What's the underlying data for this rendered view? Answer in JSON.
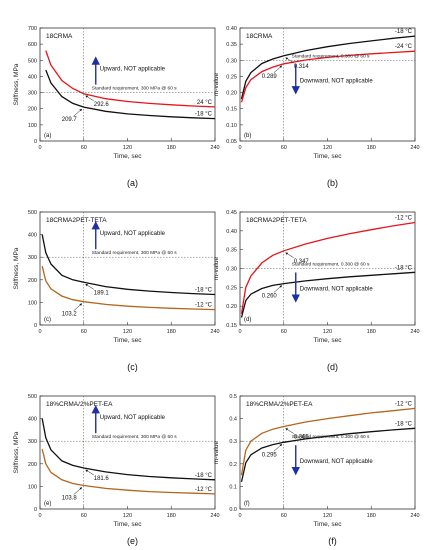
{
  "figure": {
    "panels": [
      {
        "caption": "(a)",
        "panel_tag": "(a)",
        "inset_title": "18CRMA",
        "xlabel": "Time, sec",
        "ylabel": "Stiffness, MPa",
        "x_ticks": [
          "0",
          "60",
          "120",
          "180",
          "240"
        ],
        "y_ticks": [
          "0",
          "100",
          "200",
          "300",
          "400",
          "500",
          "600",
          "700"
        ],
        "requirement_text": "Standard requirement, 300 MPa @ 60 s",
        "arrow_text": "Upward, NOT applicable",
        "arrow_direction": "up",
        "annotations": [
          {
            "text": "292.6",
            "x": 60,
            "y": 292.6
          },
          {
            "text": "209.7",
            "x": 60,
            "y": 209.7
          }
        ],
        "series_labels": [
          "24 °C",
          "-18 °C"
        ]
      },
      {
        "caption": "(b)",
        "panel_tag": "(b)",
        "inset_title": "18CRMA",
        "xlabel": "Time, sec",
        "ylabel": "m-value",
        "x_ticks": [
          "0",
          "60",
          "120",
          "180",
          "240"
        ],
        "y_ticks": [
          "0.05",
          "0.10",
          "0.15",
          "0.20",
          "0.25",
          "0.30",
          "0.35",
          "0.40"
        ],
        "requirement_text": "Standard requirement, 0.300 @ 60 s",
        "arrow_text": "Downward, NOT applicable",
        "arrow_direction": "down",
        "annotations": [
          {
            "text": "0.314",
            "x": 60,
            "y": 0.314
          },
          {
            "text": "0.289",
            "x": 60,
            "y": 0.289
          }
        ],
        "series_labels": [
          "-18 °C",
          "-24 °C"
        ]
      },
      {
        "caption": "(c)",
        "panel_tag": "(c)",
        "inset_title": "18CRMA2PET-TETA",
        "xlabel": "Time, sec",
        "ylabel": "Stiffness, MPa",
        "x_ticks": [
          "0",
          "60",
          "120",
          "180",
          "240"
        ],
        "y_ticks": [
          "0",
          "100",
          "200",
          "300",
          "400",
          "500"
        ],
        "requirement_text": "Standard requirement, 300 MPa @ 60 s",
        "arrow_text": "Upward, NOT applicable",
        "arrow_direction": "up",
        "annotations": [
          {
            "text": "189.1",
            "x": 60,
            "y": 189.1
          },
          {
            "text": "103.2",
            "x": 60,
            "y": 103.2
          }
        ],
        "series_labels": [
          "-18 °C",
          "-12 °C"
        ]
      },
      {
        "caption": "(d)",
        "panel_tag": "(d)",
        "inset_title": "18CRMA2PET-TETA",
        "xlabel": "Time, sec",
        "ylabel": "m-value",
        "x_ticks": [
          "0",
          "60",
          "120",
          "180",
          "240"
        ],
        "y_ticks": [
          "0.15",
          "0.20",
          "0.25",
          "0.30",
          "0.35",
          "0.40",
          "0.45"
        ],
        "requirement_text": "Standard requirement, 0.300 @ 60 s",
        "arrow_text": "Downward, NOT applicable",
        "arrow_direction": "down",
        "annotations": [
          {
            "text": "0.347",
            "x": 60,
            "y": 0.347
          },
          {
            "text": "0.260",
            "x": 60,
            "y": 0.26
          }
        ],
        "series_labels": [
          "-12 °C",
          "-18 °C"
        ]
      },
      {
        "caption": "(e)",
        "panel_tag": "(e)",
        "inset_title": "18%CRMA/2%PET-EA",
        "xlabel": "Time, sec",
        "ylabel": "Stiffness, MPa",
        "x_ticks": [
          "0",
          "60",
          "120",
          "180",
          "240"
        ],
        "y_ticks": [
          "0",
          "100",
          "200",
          "300",
          "400",
          "500"
        ],
        "requirement_text": "Standard requirement, 300 MPa @ 60 s",
        "arrow_text": "Upward, NOT applicable",
        "arrow_direction": "up",
        "annotations": [
          {
            "text": "181.6",
            "x": 60,
            "y": 181.6
          },
          {
            "text": "103.8",
            "x": 60,
            "y": 103.8
          }
        ],
        "series_labels": [
          "-18 °C",
          "-12 °C"
        ]
      },
      {
        "caption": "(f)",
        "panel_tag": "(f)",
        "inset_title": "18%CRMA/2%PET-EA",
        "xlabel": "Time, sec",
        "ylabel": "m-value",
        "x_ticks": [
          "0",
          "60",
          "120",
          "180",
          "240"
        ],
        "y_ticks": [
          "0.0",
          "0.1",
          "0.2",
          "0.3",
          "0.4",
          "0.5"
        ],
        "requirement_text": "Standard requirement, 0.300 @ 60 s",
        "arrow_text": "Downward, NOT applicable",
        "arrow_direction": "down",
        "annotations": [
          {
            "text": "0.365",
            "x": 60,
            "y": 0.365
          },
          {
            "text": "0.295",
            "x": 60,
            "y": 0.295
          }
        ],
        "series_labels": [
          "-12 °C",
          "-18 °C"
        ]
      }
    ]
  },
  "colors": {
    "black_series": "#111111",
    "red_series": "#e8141b",
    "brown_series": "#b5651d",
    "arrow": "#1f2ea8",
    "requirement_line": "#555555"
  },
  "chart_data": [
    {
      "type": "line",
      "title": "18CRMA",
      "xlabel": "Time, sec",
      "ylabel": "Stiffness, MPa",
      "xlim": [
        0,
        240
      ],
      "ylim": [
        0,
        700
      ],
      "series": [
        {
          "name": "24 °C",
          "color": "#e8141b",
          "x": [
            8,
            15,
            30,
            45,
            60,
            90,
            120,
            150,
            180,
            210,
            240
          ],
          "y": [
            560,
            470,
            375,
            325,
            292.6,
            262,
            245,
            233,
            224,
            217,
            211
          ]
        },
        {
          "name": "-18 °C",
          "color": "#111111",
          "x": [
            8,
            15,
            30,
            45,
            60,
            90,
            120,
            150,
            180,
            210,
            240
          ],
          "y": [
            440,
            360,
            275,
            233,
            209.7,
            184,
            168,
            158,
            150,
            144,
            139
          ]
        }
      ],
      "annotations": [
        {
          "text": "Standard requirement, 300 MPa @ 60 s",
          "x": 60,
          "y": 300
        },
        {
          "text": "292.6",
          "x": 60,
          "y": 292.6
        },
        {
          "text": "209.7",
          "x": 60,
          "y": 209.7
        },
        {
          "text": "Upward, NOT applicable"
        }
      ]
    },
    {
      "type": "line",
      "title": "18CRMA",
      "xlabel": "Time, sec",
      "ylabel": "m-value",
      "xlim": [
        0,
        240
      ],
      "ylim": [
        0.05,
        0.4
      ],
      "series": [
        {
          "name": "-18 °C",
          "color": "#111111",
          "x": [
            2,
            8,
            15,
            30,
            45,
            60,
            90,
            120,
            150,
            180,
            210,
            240
          ],
          "y": [
            0.18,
            0.235,
            0.262,
            0.29,
            0.304,
            0.314,
            0.33,
            0.342,
            0.352,
            0.36,
            0.368,
            0.375
          ]
        },
        {
          "name": "-24 °C",
          "color": "#e8141b",
          "x": [
            2,
            8,
            15,
            30,
            45,
            60,
            90,
            120,
            150,
            180,
            210,
            240
          ],
          "y": [
            0.17,
            0.215,
            0.24,
            0.265,
            0.279,
            0.289,
            0.301,
            0.309,
            0.315,
            0.32,
            0.324,
            0.328
          ]
        }
      ],
      "annotations": [
        {
          "text": "Standard requirement, 0.300 @ 60 s",
          "x": 60,
          "y": 0.3
        },
        {
          "text": "0.314",
          "x": 60,
          "y": 0.314
        },
        {
          "text": "0.289",
          "x": 60,
          "y": 0.289
        },
        {
          "text": "Downward, NOT applicable"
        }
      ]
    },
    {
      "type": "line",
      "title": "18CRMA2PET-TETA",
      "xlabel": "Time, sec",
      "ylabel": "Stiffness, MPa",
      "xlim": [
        0,
        240
      ],
      "ylim": [
        0,
        500
      ],
      "series": [
        {
          "name": "-18 °C",
          "color": "#111111",
          "x": [
            3,
            8,
            15,
            30,
            45,
            60,
            90,
            120,
            150,
            180,
            210,
            240
          ],
          "y": [
            400,
            320,
            270,
            220,
            200,
            189.1,
            170,
            158,
            150,
            144,
            139,
            135
          ]
        },
        {
          "name": "-12 °C",
          "color": "#b5651d",
          "x": [
            3,
            8,
            15,
            30,
            45,
            60,
            90,
            120,
            150,
            180,
            210,
            240
          ],
          "y": [
            260,
            195,
            160,
            128,
            112,
            103.2,
            91,
            83,
            78,
            74,
            71,
            68
          ]
        }
      ],
      "annotations": [
        {
          "text": "Standard requirement, 300 MPa @ 60 s",
          "x": 60,
          "y": 300
        },
        {
          "text": "189.1",
          "x": 60,
          "y": 189.1
        },
        {
          "text": "103.2",
          "x": 60,
          "y": 103.2
        },
        {
          "text": "Upward, NOT applicable"
        }
      ]
    },
    {
      "type": "line",
      "title": "18CRMA2PET-TETA",
      "xlabel": "Time, sec",
      "ylabel": "m-value",
      "xlim": [
        0,
        240
      ],
      "ylim": [
        0.15,
        0.45
      ],
      "series": [
        {
          "name": "-12 °C",
          "color": "#e8141b",
          "x": [
            2,
            8,
            15,
            30,
            45,
            60,
            90,
            120,
            150,
            180,
            210,
            240
          ],
          "y": [
            0.18,
            0.25,
            0.28,
            0.315,
            0.335,
            0.347,
            0.365,
            0.38,
            0.392,
            0.403,
            0.413,
            0.422
          ]
        },
        {
          "name": "-18 °C",
          "color": "#111111",
          "x": [
            2,
            8,
            15,
            30,
            45,
            60,
            90,
            120,
            150,
            180,
            210,
            240
          ],
          "y": [
            0.17,
            0.215,
            0.232,
            0.247,
            0.255,
            0.26,
            0.267,
            0.273,
            0.278,
            0.282,
            0.286,
            0.29
          ]
        }
      ],
      "annotations": [
        {
          "text": "Standard requirement, 0.300 @ 60 s",
          "x": 60,
          "y": 0.3
        },
        {
          "text": "0.347",
          "x": 60,
          "y": 0.347
        },
        {
          "text": "0.260",
          "x": 60,
          "y": 0.26
        },
        {
          "text": "Downward, NOT applicable"
        }
      ]
    },
    {
      "type": "line",
      "title": "18%CRMA/2%PET-EA",
      "xlabel": "Time, sec",
      "ylabel": "Stiffness, MPa",
      "xlim": [
        0,
        240
      ],
      "ylim": [
        0,
        500
      ],
      "series": [
        {
          "name": "-18 °C",
          "color": "#111111",
          "x": [
            3,
            8,
            15,
            30,
            45,
            60,
            90,
            120,
            150,
            180,
            210,
            240
          ],
          "y": [
            400,
            315,
            262,
            213,
            193,
            181.6,
            164,
            152,
            144,
            138,
            133,
            129
          ]
        },
        {
          "name": "-12 °C",
          "color": "#b5651d",
          "x": [
            3,
            8,
            15,
            30,
            45,
            60,
            90,
            120,
            150,
            180,
            210,
            240
          ],
          "y": [
            265,
            200,
            162,
            129,
            113,
            103.8,
            91,
            83,
            77,
            73,
            70,
            67
          ]
        }
      ],
      "annotations": [
        {
          "text": "Standard requirement, 300 MPa @ 60 s",
          "x": 60,
          "y": 300
        },
        {
          "text": "181.6",
          "x": 60,
          "y": 181.6
        },
        {
          "text": "103.8",
          "x": 60,
          "y": 103.8
        },
        {
          "text": "Upward, NOT applicable"
        }
      ]
    },
    {
      "type": "line",
      "title": "18%CRMA/2%PET-EA",
      "xlabel": "Time, sec",
      "ylabel": "m-value",
      "xlim": [
        0,
        240
      ],
      "ylim": [
        0.0,
        0.5
      ],
      "series": [
        {
          "name": "-12 °C",
          "color": "#b5651d",
          "x": [
            2,
            8,
            15,
            30,
            45,
            60,
            90,
            120,
            150,
            180,
            210,
            240
          ],
          "y": [
            0.15,
            0.26,
            0.3,
            0.335,
            0.353,
            0.365,
            0.385,
            0.4,
            0.413,
            0.425,
            0.435,
            0.445
          ]
        },
        {
          "name": "-18 °C",
          "color": "#111111",
          "x": [
            2,
            8,
            15,
            30,
            45,
            60,
            90,
            120,
            150,
            180,
            210,
            240
          ],
          "y": [
            0.12,
            0.205,
            0.24,
            0.27,
            0.285,
            0.295,
            0.31,
            0.322,
            0.333,
            0.342,
            0.35,
            0.357
          ]
        }
      ],
      "annotations": [
        {
          "text": "Standard requirement, 0.300 @ 60 s",
          "x": 60,
          "y": 0.3
        },
        {
          "text": "0.365",
          "x": 60,
          "y": 0.365
        },
        {
          "text": "0.295",
          "x": 60,
          "y": 0.295
        },
        {
          "text": "Downward, NOT applicable"
        }
      ]
    }
  ]
}
